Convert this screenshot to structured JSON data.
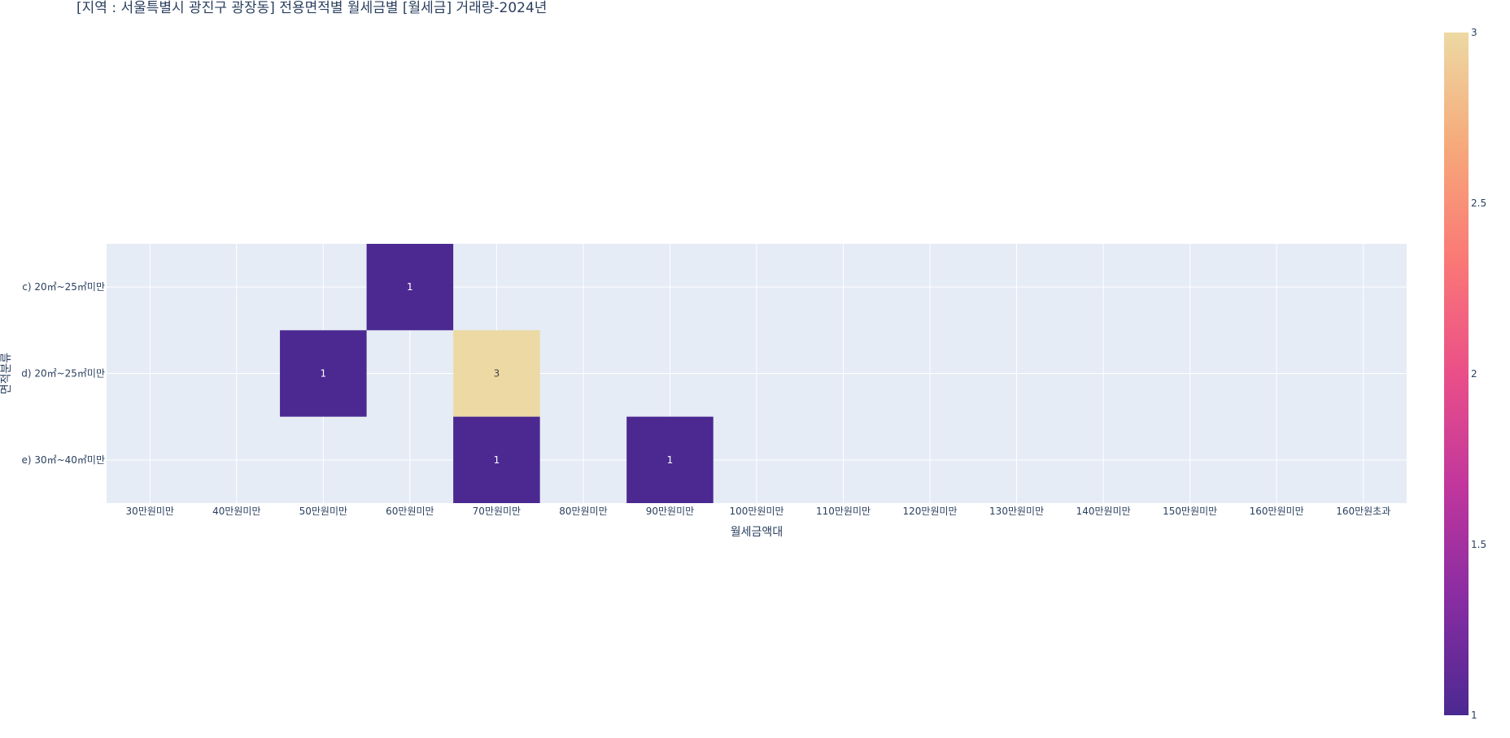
{
  "chart_data": {
    "type": "heatmap",
    "title": "[지역 : 서울특별시 광진구 광장동] 전용면적별 월세금별 [월세금] 거래량-2024년",
    "xlabel": "월세금액대",
    "ylabel": "면적분류",
    "x_categories": [
      "30만원미만",
      "40만원미만",
      "50만원미만",
      "60만원미만",
      "70만원미만",
      "80만원미만",
      "90만원미만",
      "100만원미만",
      "110만원미만",
      "120만원미만",
      "130만원미만",
      "140만원미만",
      "150만원미만",
      "160만원미만",
      "160만원초과"
    ],
    "y_categories": [
      "c) 20㎡~25㎡미만",
      "d) 20㎡~25㎡미만",
      "e) 30㎡~40㎡미만"
    ],
    "cells": [
      {
        "x": "60만원미만",
        "y": "c) 20㎡~25㎡미만",
        "value": 1
      },
      {
        "x": "50만원미만",
        "y": "d) 20㎡~25㎡미만",
        "value": 1
      },
      {
        "x": "70만원미만",
        "y": "d) 20㎡~25㎡미만",
        "value": 3
      },
      {
        "x": "70만원미만",
        "y": "e) 30㎡~40㎡미만",
        "value": 1
      },
      {
        "x": "90만원미만",
        "y": "e) 30㎡~40㎡미만",
        "value": 1
      }
    ],
    "colorscale": {
      "min": 1,
      "max": 3,
      "ticks": [
        1,
        1.5,
        2,
        2.5,
        3
      ],
      "tick_labels": [
        "1",
        "1.5",
        "2",
        "2.5",
        "3"
      ],
      "stops": [
        "#4b2991",
        "#872ca2",
        "#c0369d",
        "#ea4f88",
        "#fa7876",
        "#f6a97a",
        "#edd9a3"
      ]
    },
    "grid": true,
    "plot_bg": "#e5ecf6"
  }
}
